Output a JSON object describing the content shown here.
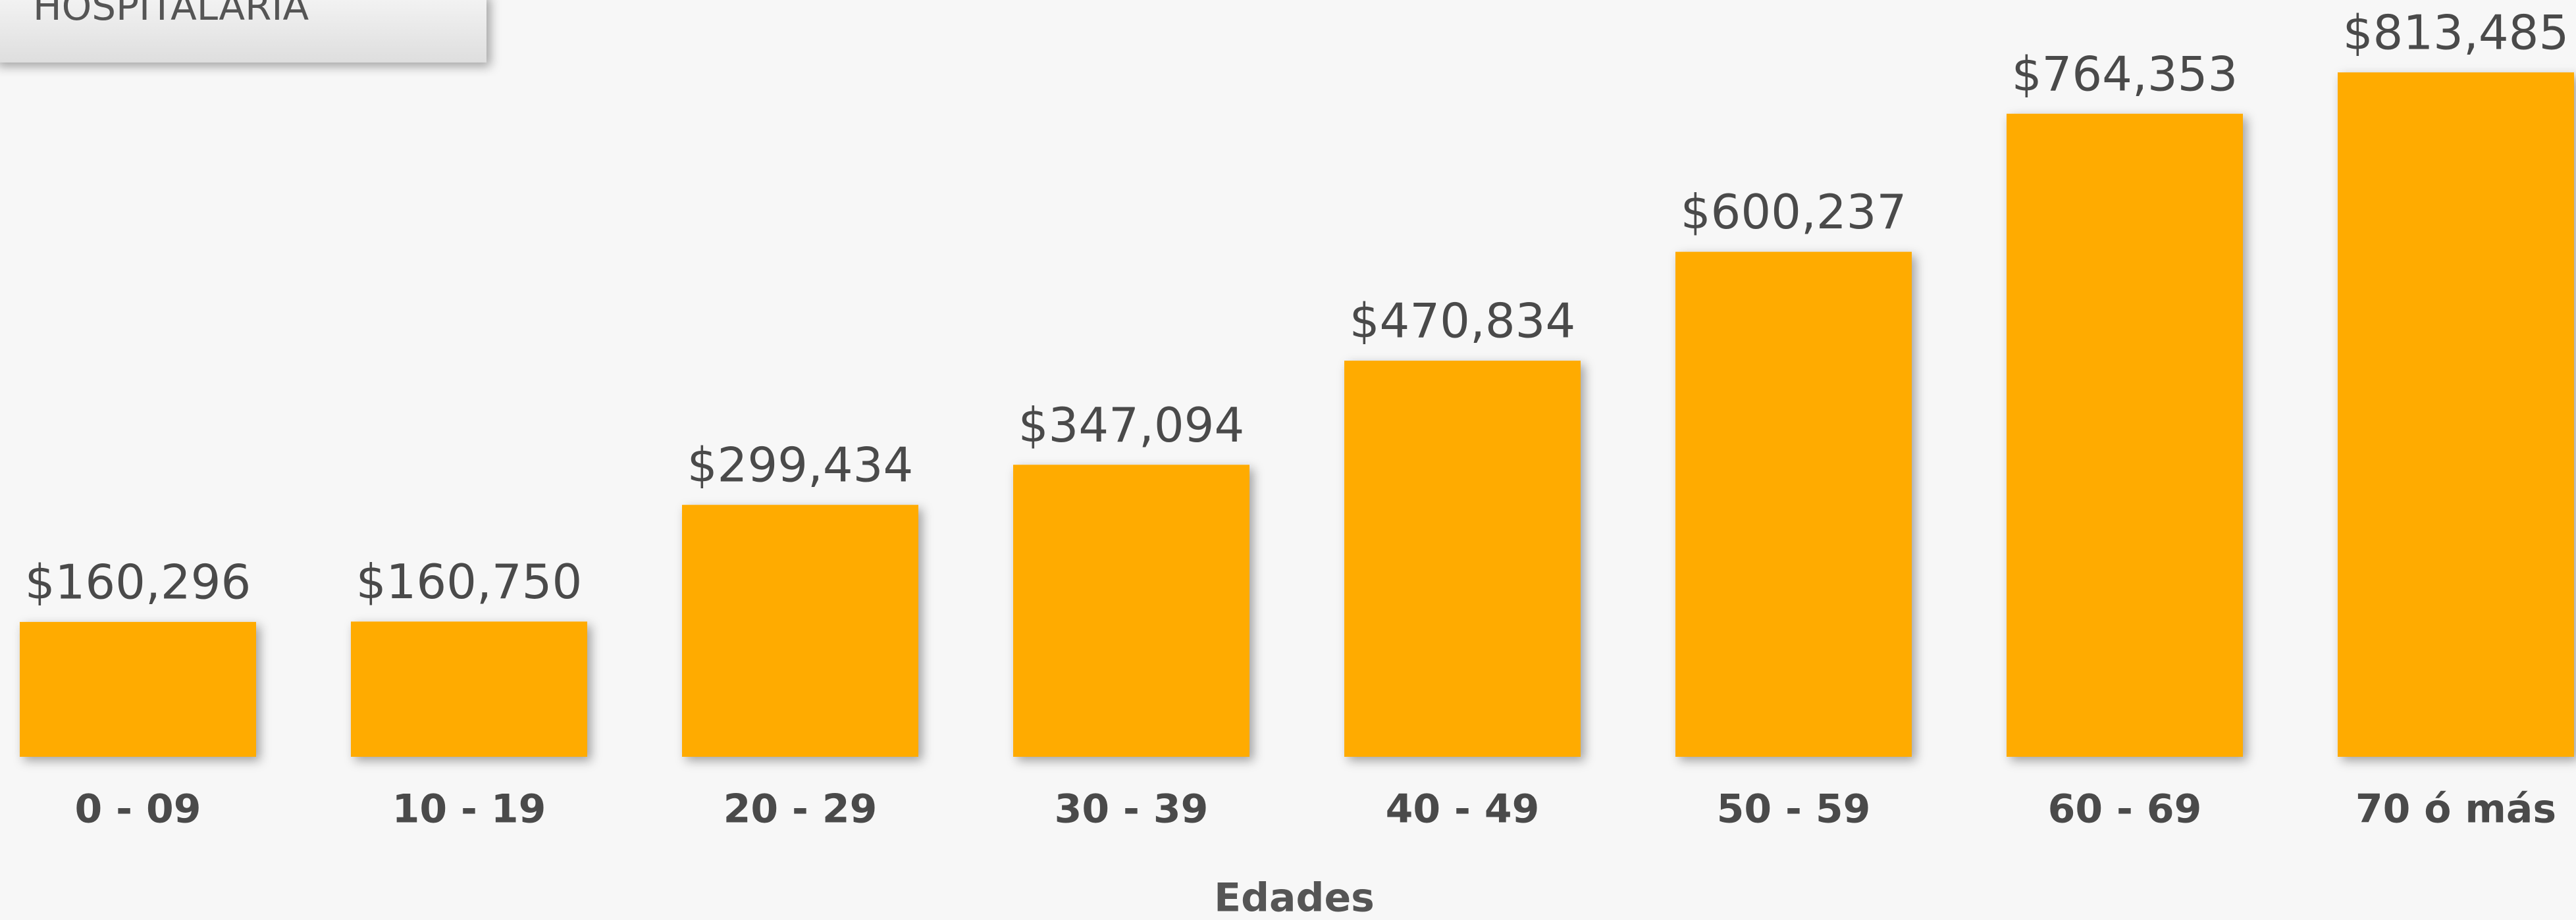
{
  "chart_data": {
    "type": "bar",
    "title": "HOSPITALARIA",
    "xlabel": "Edades",
    "categories": [
      "0 - 09",
      "10 - 19",
      "20 - 29",
      "30 - 39",
      "40 - 49",
      "50 - 59",
      "60 - 69",
      "70 ó más"
    ],
    "values": [
      160296,
      160750,
      299434,
      347094,
      470834,
      600237,
      764353,
      813485
    ],
    "value_labels": [
      "$160,296",
      "$160,750",
      "$299,434",
      "$347,094",
      "$470,834",
      "$600,237",
      "$764,353",
      "$813,485"
    ],
    "color": "#ffab00"
  }
}
